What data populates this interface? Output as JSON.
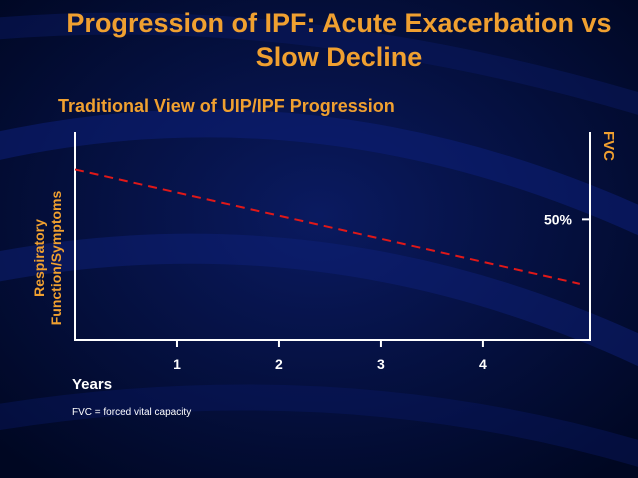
{
  "slide": {
    "title_line1": "Progression of IPF: Acute Exacerbation vs",
    "title_line2": "Slow Decline",
    "footnote": "FVC = forced vital capacity"
  },
  "colors": {
    "background": "#000a30",
    "title": "#f0a030",
    "axis": "#ffffff",
    "line": "#e01818"
  },
  "chart_data": {
    "type": "line",
    "title": "Traditional View of UIP/IPF Progression",
    "xlabel": "Years",
    "ylabel_lines": [
      "Respiratory",
      "Function/Symptoms"
    ],
    "y2label": "FVC",
    "x_ticks": [
      "1",
      "2",
      "3",
      "4"
    ],
    "xlim": [
      0,
      5.05
    ],
    "ylim": [
      0,
      100
    ],
    "y2_tick": {
      "value": 58,
      "label": "50%"
    },
    "series": [
      {
        "line_style": "dashed",
        "color": "#e01818",
        "x": [
          0,
          4.95
        ],
        "y": [
          82,
          27
        ]
      }
    ]
  }
}
